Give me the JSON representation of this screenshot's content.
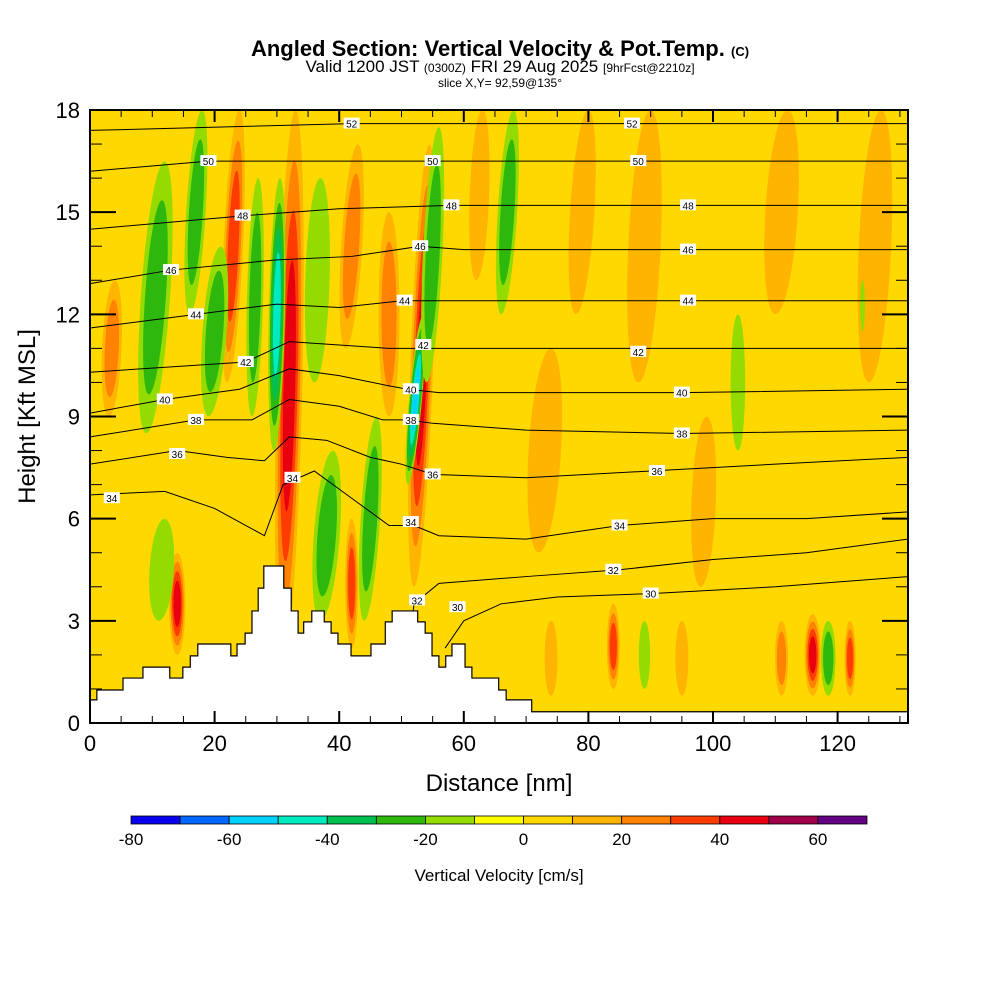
{
  "chart_data": {
    "type": "heatmap",
    "title": "Angled Section: Vertical Velocity & Pot.Temp.",
    "title_unit": "(C)",
    "subtitle_main": "Valid 1200 JST",
    "subtitle_utc": "(0300Z)",
    "subtitle_date": "FRI 29 Aug 2025",
    "subtitle_fcst": "[9hrFcst@2210z]",
    "slice": "slice X,Y= 92,59@135°",
    "xlabel": "Distance [nm]",
    "ylabel": "Height [Kft MSL]",
    "xlim": [
      0,
      131.3
    ],
    "ylim": [
      0,
      18
    ],
    "xticks": [
      "0",
      "20",
      "40",
      "60",
      "80",
      "100",
      "120"
    ],
    "xtick_values": [
      0,
      20,
      40,
      60,
      80,
      100,
      120
    ],
    "yticks": [
      "0",
      "3",
      "6",
      "9",
      "12",
      "15",
      "18"
    ],
    "ytick_values": [
      0,
      3,
      6,
      9,
      12,
      15,
      18
    ],
    "colorbar": {
      "label": "Vertical Velocity [cm/s]",
      "bounds": [
        -80,
        70
      ],
      "step": 10,
      "colors": [
        "#0a00f0",
        "#0068ff",
        "#00d2ff",
        "#00eac0",
        "#00c052",
        "#2eb80e",
        "#94dc00",
        "#ffff00",
        "#ffd800",
        "#ffb400",
        "#ff8200",
        "#ff3c00",
        "#e80010",
        "#a0004a",
        "#640082"
      ],
      "tick_labels": [
        "-80",
        "-60",
        "-40",
        "-20",
        "0",
        "20",
        "40",
        "60"
      ],
      "tick_values": [
        -80,
        -60,
        -40,
        -20,
        0,
        20,
        40,
        60
      ]
    },
    "velocity_cells": [
      {
        "x0": 31,
        "x1": 33,
        "y0": 1.8,
        "y1": 18,
        "w": 1.6,
        "v": 42
      },
      {
        "x0": 29.5,
        "x1": 30.5,
        "y0": 8,
        "y1": 16,
        "w": 1.0,
        "v": -45
      },
      {
        "x0": 52,
        "x1": 54.5,
        "y0": 4,
        "y1": 17,
        "w": 1.4,
        "v": 42
      },
      {
        "x0": 51,
        "x1": 53.5,
        "y0": 7,
        "y1": 12,
        "w": 0.8,
        "v": -52
      },
      {
        "x0": 54,
        "x1": 56,
        "y0": 10,
        "y1": 17.5,
        "w": 1.2,
        "v": -25
      },
      {
        "x0": 9,
        "x1": 12,
        "y0": 8.5,
        "y1": 16.5,
        "w": 1.8,
        "v": -28
      },
      {
        "x0": 22,
        "x1": 24,
        "y0": 10,
        "y1": 18,
        "w": 1.2,
        "v": 32
      },
      {
        "x0": 16,
        "x1": 18,
        "y0": 12,
        "y1": 18,
        "w": 1.2,
        "v": -25
      },
      {
        "x0": 19,
        "x1": 21,
        "y0": 9,
        "y1": 14,
        "w": 1.5,
        "v": -22
      },
      {
        "x0": 26,
        "x1": 27,
        "y0": 9,
        "y1": 16,
        "w": 1.0,
        "v": -20
      },
      {
        "x0": 14,
        "x1": 14,
        "y0": 2,
        "y1": 5,
        "w": 1.0,
        "v": 40
      },
      {
        "x0": 3,
        "x1": 4,
        "y0": 9,
        "y1": 13,
        "w": 1.2,
        "v": 22
      },
      {
        "x0": 11,
        "x1": 12,
        "y0": 3,
        "y1": 6,
        "w": 1.5,
        "v": -15
      },
      {
        "x0": 37,
        "x1": 39,
        "y0": 3,
        "y1": 8,
        "w": 1.6,
        "v": -22
      },
      {
        "x0": 44,
        "x1": 46,
        "y0": 3,
        "y1": 9,
        "w": 1.2,
        "v": -25
      },
      {
        "x0": 42,
        "x1": 42,
        "y0": 2.2,
        "y1": 6,
        "w": 0.8,
        "v": 32
      },
      {
        "x0": 36,
        "x1": 37,
        "y0": 10,
        "y1": 16,
        "w": 1.5,
        "v": -18
      },
      {
        "x0": 48,
        "x1": 48,
        "y0": 9,
        "y1": 15,
        "w": 1.3,
        "v": 20
      },
      {
        "x0": 41,
        "x1": 43,
        "y0": 11,
        "y1": 17,
        "w": 1.3,
        "v": 20
      },
      {
        "x0": 66,
        "x1": 68,
        "y0": 12,
        "y1": 18,
        "w": 1.2,
        "v": -22
      },
      {
        "x0": 62,
        "x1": 63,
        "y0": 13,
        "y1": 18,
        "w": 1.2,
        "v": 18
      },
      {
        "x0": 84,
        "x1": 84,
        "y0": 1,
        "y1": 3.5,
        "w": 0.8,
        "v": 32
      },
      {
        "x0": 89,
        "x1": 89,
        "y0": 1,
        "y1": 3,
        "w": 0.7,
        "v": -15
      },
      {
        "x0": 104,
        "x1": 104,
        "y0": 8,
        "y1": 12,
        "w": 0.9,
        "v": -18
      },
      {
        "x0": 116,
        "x1": 116,
        "y0": 0.8,
        "y1": 3.2,
        "w": 1.0,
        "v": 45
      },
      {
        "x0": 118.5,
        "x1": 118.5,
        "y0": 0.8,
        "y1": 3,
        "w": 0.9,
        "v": -22
      },
      {
        "x0": 111,
        "x1": 111,
        "y0": 0.8,
        "y1": 3,
        "w": 0.8,
        "v": 25
      },
      {
        "x0": 122,
        "x1": 122,
        "y0": 0.8,
        "y1": 3,
        "w": 0.7,
        "v": 30
      },
      {
        "x0": 74,
        "x1": 74,
        "y0": 0.8,
        "y1": 3,
        "w": 0.8,
        "v": 18
      },
      {
        "x0": 95,
        "x1": 95,
        "y0": 0.8,
        "y1": 3,
        "w": 0.8,
        "v": 18
      },
      {
        "x0": 78,
        "x1": 80,
        "y0": 12,
        "y1": 18,
        "w": 1.5,
        "v": 15
      },
      {
        "x0": 88,
        "x1": 90,
        "y0": 10,
        "y1": 18,
        "w": 2.0,
        "v": 14
      },
      {
        "x0": 110,
        "x1": 112,
        "y0": 12,
        "y1": 18,
        "w": 2.0,
        "v": 14
      },
      {
        "x0": 125,
        "x1": 127,
        "y0": 10,
        "y1": 18,
        "w": 2.0,
        "v": 14
      },
      {
        "x0": 72,
        "x1": 74,
        "y0": 5,
        "y1": 11,
        "w": 2.0,
        "v": 14
      },
      {
        "x0": 98,
        "x1": 99,
        "y0": 4,
        "y1": 9,
        "w": 1.5,
        "v": 14
      },
      {
        "x0": 124,
        "x1": 124,
        "y0": 11.5,
        "y1": 13,
        "w": 0.3,
        "v": -18
      }
    ],
    "terrain_steps": [
      [
        0,
        0.68
      ],
      [
        1.1,
        0.97
      ],
      [
        5.3,
        1.32
      ],
      [
        8.5,
        1.64
      ],
      [
        12.8,
        1.32
      ],
      [
        14.9,
        1.64
      ],
      [
        16.1,
        1.97
      ],
      [
        17.3,
        2.32
      ],
      [
        22.6,
        1.97
      ],
      [
        23.6,
        2.32
      ],
      [
        24.9,
        2.64
      ],
      [
        26.0,
        3.29
      ],
      [
        27.0,
        3.96
      ],
      [
        27.9,
        4.61
      ],
      [
        31.1,
        3.96
      ],
      [
        32.3,
        3.29
      ],
      [
        33.4,
        2.64
      ],
      [
        34.3,
        2.97
      ],
      [
        35.6,
        3.29
      ],
      [
        37.6,
        2.97
      ],
      [
        38.7,
        2.64
      ],
      [
        39.8,
        2.32
      ],
      [
        41.9,
        1.97
      ],
      [
        45.1,
        2.32
      ],
      [
        47.4,
        2.97
      ],
      [
        48.5,
        3.29
      ],
      [
        52.6,
        2.97
      ],
      [
        53.8,
        2.64
      ],
      [
        54.9,
        1.97
      ],
      [
        56.0,
        1.64
      ],
      [
        57.1,
        1.97
      ],
      [
        58.1,
        2.32
      ],
      [
        60.2,
        1.64
      ],
      [
        61.3,
        1.32
      ],
      [
        65.6,
        0.97
      ],
      [
        66.8,
        0.68
      ],
      [
        70.9,
        0.33
      ]
    ],
    "isentropes": [
      {
        "theta": "30",
        "points": [
          [
            57,
            2.2
          ],
          [
            60,
            3.0
          ],
          [
            66,
            3.5
          ],
          [
            75,
            3.7
          ],
          [
            90,
            3.8
          ],
          [
            110,
            4.0
          ],
          [
            131.3,
            4.3
          ]
        ],
        "labels": [
          [
            59,
            3.4
          ],
          [
            90,
            3.8
          ]
        ]
      },
      {
        "theta": "32",
        "points": [
          [
            51.5,
            2.6
          ],
          [
            52,
            3.5
          ],
          [
            56,
            4.1
          ],
          [
            70,
            4.3
          ],
          [
            85,
            4.5
          ],
          [
            100,
            4.8
          ],
          [
            115,
            5.0
          ],
          [
            131.3,
            5.4
          ]
        ],
        "labels": [
          [
            52.5,
            3.6
          ],
          [
            84,
            4.5
          ]
        ]
      },
      {
        "theta": "34",
        "points": [
          [
            0,
            6.7
          ],
          [
            12,
            6.8
          ],
          [
            20,
            6.3
          ],
          [
            28,
            5.5
          ],
          [
            31,
            7.0
          ],
          [
            36,
            7.4
          ],
          [
            42,
            6.6
          ],
          [
            48,
            5.8
          ],
          [
            52,
            5.8
          ],
          [
            56,
            5.5
          ],
          [
            70,
            5.4
          ],
          [
            85,
            5.8
          ],
          [
            100,
            6.0
          ],
          [
            115,
            6.0
          ],
          [
            131.3,
            6.2
          ]
        ],
        "labels": [
          [
            3.5,
            6.6
          ],
          [
            32.5,
            7.2
          ],
          [
            51.5,
            5.9
          ],
          [
            85,
            5.8
          ]
        ]
      },
      {
        "theta": "36",
        "points": [
          [
            0,
            7.6
          ],
          [
            14,
            8.0
          ],
          [
            22,
            7.8
          ],
          [
            28,
            7.7
          ],
          [
            32,
            8.4
          ],
          [
            38,
            8.3
          ],
          [
            45,
            7.8
          ],
          [
            50,
            7.6
          ],
          [
            55,
            7.3
          ],
          [
            70,
            7.2
          ],
          [
            90,
            7.4
          ],
          [
            110,
            7.6
          ],
          [
            131.3,
            7.8
          ]
        ],
        "labels": [
          [
            14,
            7.9
          ],
          [
            55,
            7.3
          ],
          [
            91,
            7.4
          ]
        ]
      },
      {
        "theta": "38",
        "points": [
          [
            0,
            8.4
          ],
          [
            17,
            8.9
          ],
          [
            26,
            8.9
          ],
          [
            32,
            9.5
          ],
          [
            40,
            9.3
          ],
          [
            47,
            8.9
          ],
          [
            51,
            8.9
          ],
          [
            55,
            8.8
          ],
          [
            70,
            8.6
          ],
          [
            95,
            8.5
          ],
          [
            131.3,
            8.6
          ]
        ],
        "labels": [
          [
            17,
            8.9
          ],
          [
            51.5,
            8.9
          ],
          [
            95,
            8.5
          ]
        ]
      },
      {
        "theta": "40",
        "points": [
          [
            0,
            9.1
          ],
          [
            12,
            9.5
          ],
          [
            24,
            9.8
          ],
          [
            32,
            10.4
          ],
          [
            40,
            10.2
          ],
          [
            48,
            9.9
          ],
          [
            51,
            9.8
          ],
          [
            56,
            9.7
          ],
          [
            75,
            9.7
          ],
          [
            95,
            9.7
          ],
          [
            131.3,
            9.8
          ]
        ],
        "labels": [
          [
            12,
            9.5
          ],
          [
            51.5,
            9.8
          ],
          [
            95,
            9.7
          ]
        ]
      },
      {
        "theta": "42",
        "points": [
          [
            0,
            10.3
          ],
          [
            25,
            10.6
          ],
          [
            32,
            11.2
          ],
          [
            40,
            11.1
          ],
          [
            48,
            11.0
          ],
          [
            53,
            11.0
          ],
          [
            70,
            11.0
          ],
          [
            90,
            11.0
          ],
          [
            131.3,
            11.0
          ]
        ],
        "labels": [
          [
            25,
            10.6
          ],
          [
            53.5,
            11.1
          ],
          [
            88,
            10.9
          ]
        ]
      },
      {
        "theta": "44",
        "points": [
          [
            0,
            11.6
          ],
          [
            17,
            12.0
          ],
          [
            30,
            12.3
          ],
          [
            40,
            12.2
          ],
          [
            50,
            12.4
          ],
          [
            60,
            12.4
          ],
          [
            80,
            12.4
          ],
          [
            131.3,
            12.4
          ]
        ],
        "labels": [
          [
            17,
            12.0
          ],
          [
            50.5,
            12.4
          ],
          [
            96,
            12.4
          ]
        ]
      },
      {
        "theta": "46",
        "points": [
          [
            0,
            12.9
          ],
          [
            13,
            13.3
          ],
          [
            30,
            13.6
          ],
          [
            42,
            13.7
          ],
          [
            53,
            14.0
          ],
          [
            60,
            13.9
          ],
          [
            80,
            13.9
          ],
          [
            131.3,
            13.9
          ]
        ],
        "labels": [
          [
            13,
            13.3
          ],
          [
            53,
            14.0
          ],
          [
            96,
            13.9
          ]
        ]
      },
      {
        "theta": "48",
        "points": [
          [
            0,
            14.5
          ],
          [
            25,
            14.9
          ],
          [
            40,
            15.1
          ],
          [
            58,
            15.2
          ],
          [
            80,
            15.2
          ],
          [
            131.3,
            15.2
          ]
        ],
        "labels": [
          [
            24.5,
            14.9
          ],
          [
            58,
            15.2
          ],
          [
            96,
            15.2
          ]
        ]
      },
      {
        "theta": "50",
        "points": [
          [
            0,
            16.2
          ],
          [
            19,
            16.5
          ],
          [
            40,
            16.5
          ],
          [
            55,
            16.5
          ],
          [
            80,
            16.5
          ],
          [
            131.3,
            16.5
          ]
        ],
        "labels": [
          [
            19,
            16.5
          ],
          [
            55,
            16.5
          ],
          [
            88,
            16.5
          ]
        ]
      },
      {
        "theta": "52",
        "points": [
          [
            0,
            17.4
          ],
          [
            42,
            17.6
          ],
          [
            70,
            17.6
          ],
          [
            131.3,
            17.6
          ]
        ],
        "labels": [
          [
            42,
            17.6
          ],
          [
            87,
            17.6
          ]
        ]
      }
    ]
  }
}
